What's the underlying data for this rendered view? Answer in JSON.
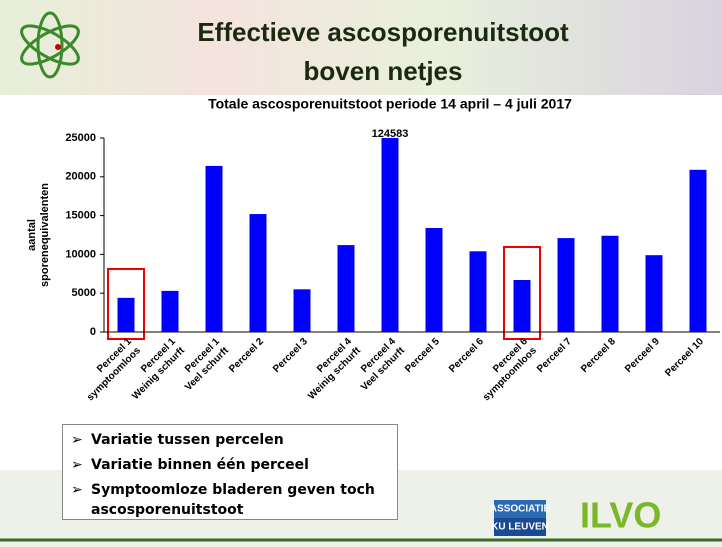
{
  "header": {
    "title_lines": [
      "Effectieve ascosporenuitstoot",
      "boven netjes"
    ]
  },
  "chart_data": {
    "type": "bar",
    "title": "Totale ascosporenuitstoot periode 14 april – 4 juli 2017",
    "y_label_lines": [
      "aantal",
      "sporenequivalenten"
    ],
    "categories": [
      [
        "Perceel 1",
        "symptoomloos"
      ],
      [
        "Perceel 1",
        "Weinig schurft"
      ],
      [
        "Perceel 1",
        "Veel schurft"
      ],
      [
        "Perceel 2"
      ],
      [
        "Perceel 3"
      ],
      [
        "Perceel 4",
        "Weinig schurft"
      ],
      [
        "Perceel 4",
        "Veel schurft"
      ],
      [
        "Perceel 5"
      ],
      [
        "Perceel 6"
      ],
      [
        "Perceel 6",
        "symptoomloos"
      ],
      [
        "Perceel 7"
      ],
      [
        "Perceel 8"
      ],
      [
        "Perceel 9"
      ],
      [
        "Perceel 10"
      ]
    ],
    "values": [
      4400,
      5300,
      21400,
      15200,
      5500,
      11200,
      124583,
      13400,
      10400,
      6700,
      12100,
      12400,
      9900,
      20900
    ],
    "value_labels": [
      null,
      null,
      null,
      null,
      null,
      null,
      "124583",
      null,
      null,
      null,
      null,
      null,
      null,
      null
    ],
    "color": "#0000ff",
    "ylim": [
      0,
      25000
    ],
    "yticks": [
      0,
      5000,
      10000,
      15000,
      20000,
      25000
    ]
  },
  "bullets": [
    "Variatie tussen percelen",
    "Variatie binnen één perceel",
    "Symptoomloze bladeren geven toch ascosporenuitstoot"
  ],
  "logos": {
    "associatie": "ASSOCIATIE",
    "kuleuven": "KU LEUVEN",
    "ilvo": "ILVO"
  }
}
